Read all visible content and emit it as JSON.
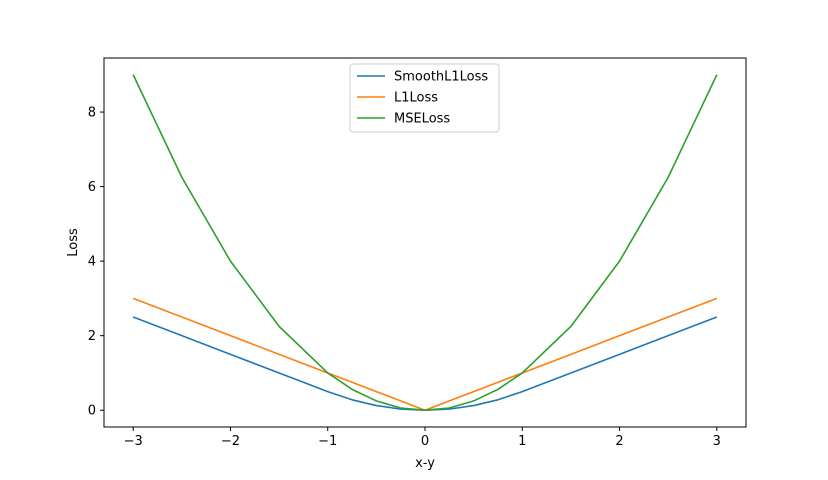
{
  "chart_data": {
    "type": "line",
    "title": "",
    "xlabel": "x-y",
    "ylabel": "Loss",
    "xlim": [
      -3.3,
      3.3
    ],
    "ylim": [
      -0.45,
      9.45
    ],
    "xticks": [
      -3,
      -2,
      -1,
      0,
      1,
      2,
      3
    ],
    "xtick_labels": [
      "−3",
      "−2",
      "−1",
      "0",
      "1",
      "2",
      "3"
    ],
    "yticks": [
      0,
      2,
      4,
      6,
      8
    ],
    "ytick_labels": [
      "0",
      "2",
      "4",
      "6",
      "8"
    ],
    "grid": false,
    "legend_position": "top-center",
    "x": [
      -3.0,
      -2.5,
      -2.0,
      -1.5,
      -1.0,
      -0.75,
      -0.5,
      -0.25,
      0.0,
      0.25,
      0.5,
      0.75,
      1.0,
      1.5,
      2.0,
      2.5,
      3.0
    ],
    "series": [
      {
        "name": "SmoothL1Loss",
        "color": "#1f77b4",
        "values": [
          2.5,
          2.0,
          1.5,
          1.0,
          0.5,
          0.28,
          0.125,
          0.03,
          0.0,
          0.03,
          0.125,
          0.28,
          0.5,
          1.0,
          1.5,
          2.0,
          2.5
        ]
      },
      {
        "name": "L1Loss",
        "color": "#ff7f0e",
        "values": [
          3.0,
          2.5,
          2.0,
          1.5,
          1.0,
          0.75,
          0.5,
          0.25,
          0.0,
          0.25,
          0.5,
          0.75,
          1.0,
          1.5,
          2.0,
          2.5,
          3.0
        ]
      },
      {
        "name": "MSELoss",
        "color": "#2ca02c",
        "values": [
          9.0,
          6.25,
          4.0,
          2.25,
          1.0,
          0.56,
          0.25,
          0.06,
          0.0,
          0.06,
          0.25,
          0.56,
          1.0,
          2.25,
          4.0,
          6.25,
          9.0
        ]
      }
    ]
  }
}
